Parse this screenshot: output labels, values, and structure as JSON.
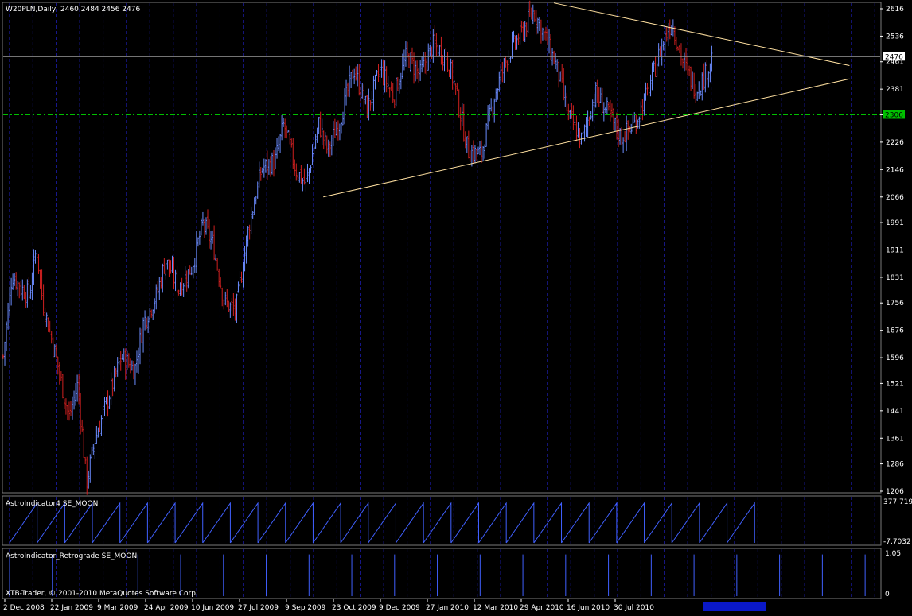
{
  "window": {
    "title": "W20PLN,Daily",
    "ohlc": "2460 2484 2456 2476",
    "copyright": "XTB-Trader, © 2001-2010 MetaQuotes Software Corp."
  },
  "colors": {
    "background": "#000000",
    "bull": "#6b8cff",
    "bear": "#d02020",
    "grid": "#2020c0",
    "trend": "#ffe0a0",
    "support": "#00c000",
    "indicator": "#4060ff",
    "axis": "#ffffff"
  },
  "chart_data": [
    {
      "type": "candlestick",
      "title": "W20PLN,Daily",
      "ylim": [
        1206,
        2616
      ],
      "y_ticks": [
        2616,
        2536,
        2461,
        2381,
        2306,
        2226,
        2146,
        2066,
        1991,
        1911,
        1831,
        1756,
        1676,
        1596,
        1521,
        1441,
        1361,
        1286,
        1206
      ],
      "x_ticks": [
        "2 Dec 2008",
        "22 Jan 2009",
        "9 Mar 2009",
        "24 Apr 2009",
        "10 Jun 2009",
        "27 Jul 2009",
        "9 Sep 2009",
        "23 Oct 2009",
        "9 Dec 2009",
        "27 Jan 2010",
        "12 Mar 2010",
        "29 Apr 2010",
        "16 Jun 2010",
        "30 Jul 2010"
      ],
      "last_price_label": "2476",
      "last_price": 2476,
      "support_label": "2306",
      "support_level": 2306,
      "trendlines": [
        {
          "name": "upper",
          "from": {
            "x": 0.628,
            "y": 2633
          },
          "to": {
            "x": 0.965,
            "y": 2450
          }
        },
        {
          "name": "lower",
          "from": {
            "x": 0.365,
            "y": 2066
          },
          "to": {
            "x": 0.965,
            "y": 2411
          }
        }
      ],
      "price_path": [
        [
          0.0,
          1600
        ],
        [
          0.01,
          1840
        ],
        [
          0.02,
          1800
        ],
        [
          0.03,
          1780
        ],
        [
          0.038,
          1920
        ],
        [
          0.045,
          1760
        ],
        [
          0.06,
          1600
        ],
        [
          0.075,
          1420
        ],
        [
          0.085,
          1520
        ],
        [
          0.095,
          1230
        ],
        [
          0.105,
          1360
        ],
        [
          0.12,
          1480
        ],
        [
          0.135,
          1600
        ],
        [
          0.15,
          1560
        ],
        [
          0.16,
          1700
        ],
        [
          0.175,
          1780
        ],
        [
          0.185,
          1880
        ],
        [
          0.2,
          1800
        ],
        [
          0.215,
          1860
        ],
        [
          0.228,
          1990
        ],
        [
          0.24,
          1920
        ],
        [
          0.252,
          1760
        ],
        [
          0.265,
          1730
        ],
        [
          0.28,
          1980
        ],
        [
          0.295,
          2150
        ],
        [
          0.31,
          2170
        ],
        [
          0.32,
          2280
        ],
        [
          0.333,
          2150
        ],
        [
          0.345,
          2100
        ],
        [
          0.36,
          2280
        ],
        [
          0.37,
          2200
        ],
        [
          0.385,
          2300
        ],
        [
          0.4,
          2440
        ],
        [
          0.415,
          2320
        ],
        [
          0.43,
          2440
        ],
        [
          0.445,
          2360
        ],
        [
          0.46,
          2480
        ],
        [
          0.475,
          2420
        ],
        [
          0.49,
          2510
        ],
        [
          0.505,
          2480
        ],
        [
          0.515,
          2390
        ],
        [
          0.53,
          2200
        ],
        [
          0.545,
          2190
        ],
        [
          0.56,
          2360
        ],
        [
          0.575,
          2480
        ],
        [
          0.59,
          2540
        ],
        [
          0.605,
          2610
        ],
        [
          0.62,
          2520
        ],
        [
          0.632,
          2440
        ],
        [
          0.645,
          2300
        ],
        [
          0.66,
          2230
        ],
        [
          0.675,
          2370
        ],
        [
          0.69,
          2310
        ],
        [
          0.705,
          2240
        ],
        [
          0.72,
          2280
        ],
        [
          0.735,
          2370
        ],
        [
          0.75,
          2500
        ],
        [
          0.762,
          2580
        ],
        [
          0.775,
          2460
        ],
        [
          0.79,
          2380
        ],
        [
          0.8,
          2420
        ],
        [
          0.808,
          2476
        ]
      ]
    },
    {
      "type": "line",
      "title": "AstroIndicator4 SE_MOON",
      "ylim": [
        -7.7032,
        377.7191
      ],
      "y_ticks": [
        "377.7191",
        "-7.7032"
      ],
      "cycles": 27,
      "cycle_min": 0,
      "cycle_max": 360
    },
    {
      "type": "spikes",
      "title": "AstroIndicator_Retrograde SE_MOON",
      "ylim": [
        0,
        1.05
      ],
      "y_ticks": [
        "1.05",
        "0"
      ],
      "spike_count": 21,
      "spike_value": 1
    }
  ]
}
